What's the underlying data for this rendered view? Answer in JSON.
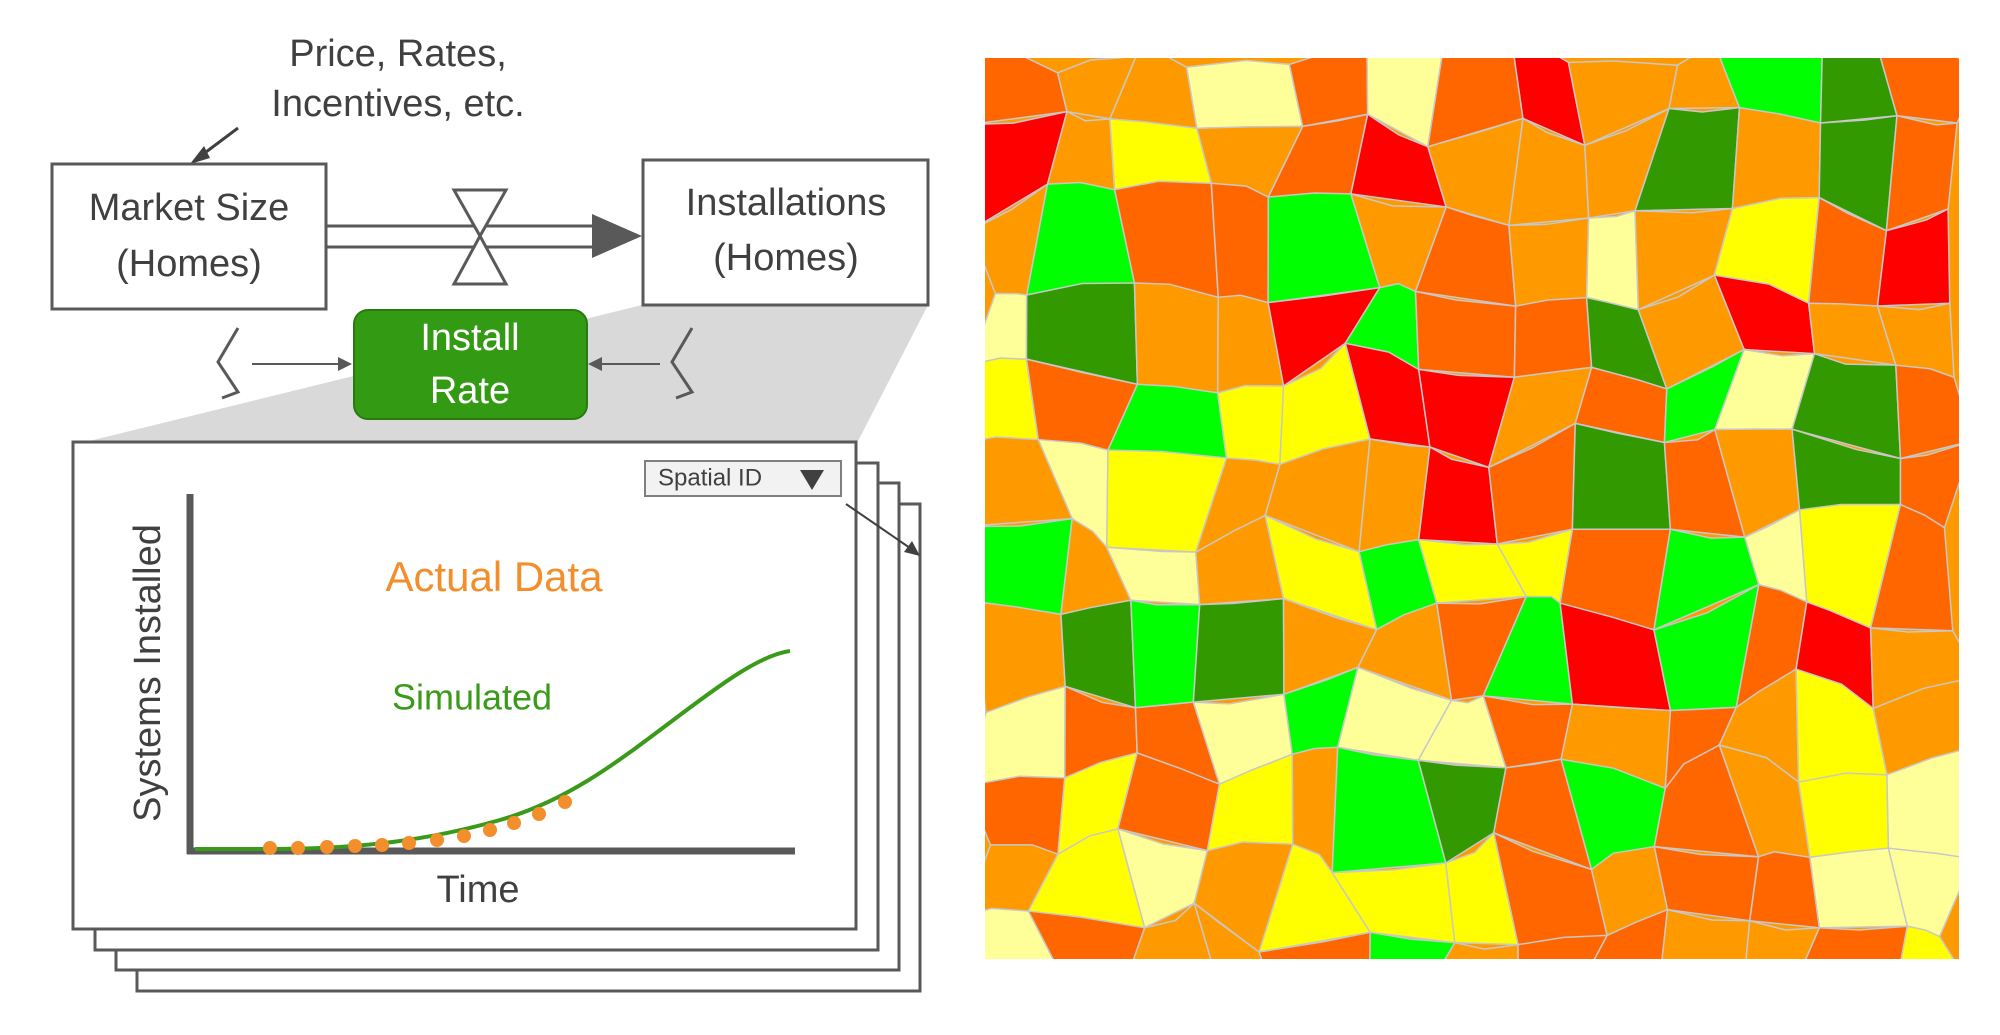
{
  "price_note": {
    "lines": [
      "Price, Rates,",
      "Incentives, etc."
    ]
  },
  "stock_left": {
    "lines": [
      "Market Size",
      "(Homes)"
    ]
  },
  "stock_right": {
    "lines": [
      "Installations",
      "(Homes)"
    ]
  },
  "flow": {
    "lines": [
      "Install",
      "Rate"
    ]
  },
  "dropdown": {
    "label": "Spatial ID"
  },
  "chart_panel": {
    "y_label": "Systems Installed",
    "x_label": "Time",
    "actual_label": "Actual Data",
    "simulated_label": "Simulated"
  }
}
